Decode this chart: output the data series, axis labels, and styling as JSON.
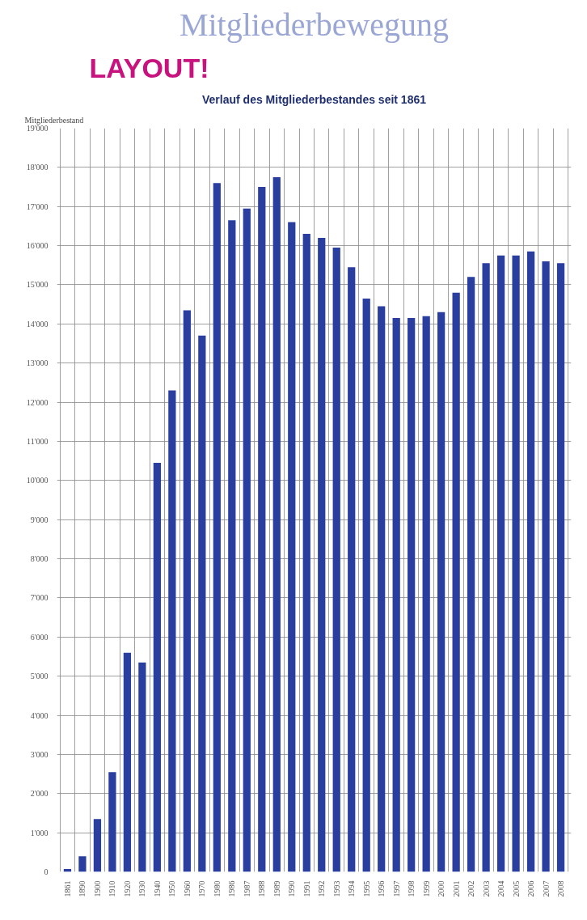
{
  "chart_data": {
    "type": "bar",
    "title": "Mitgliederbewegung",
    "subtitle": "Verlauf des Mitgliederbestandes seit 1861",
    "annotations": [
      "LAYOUT!"
    ],
    "ylabel": "Mitgliederbestand",
    "categories": [
      "1861",
      "1890",
      "1900",
      "1910",
      "1920",
      "1930",
      "1940",
      "1950",
      "1960",
      "1970",
      "1980",
      "1986",
      "1987",
      "1988",
      "1989",
      "1990",
      "1991",
      "1992",
      "1993",
      "1994",
      "1995",
      "1996",
      "1997",
      "1998",
      "1999",
      "2000",
      "2001",
      "2002",
      "2003",
      "2004",
      "2005",
      "2006",
      "2007",
      "2008"
    ],
    "values": [
      70,
      400,
      1350,
      2550,
      5600,
      5350,
      10450,
      12300,
      14350,
      13700,
      17600,
      16650,
      16950,
      17500,
      17750,
      16600,
      16300,
      16200,
      15950,
      15450,
      14650,
      14450,
      14150,
      14150,
      14200,
      14300,
      14800,
      15200,
      15550,
      15750,
      15750,
      15850,
      15600,
      15550
    ],
    "color": "#2a3ea0",
    "ylim": [
      0,
      19000
    ],
    "yticks": [
      {
        "value": 0,
        "label": "0"
      },
      {
        "value": 1000,
        "label": "1'000"
      },
      {
        "value": 2000,
        "label": "2'000"
      },
      {
        "value": 3000,
        "label": "3'000"
      },
      {
        "value": 4000,
        "label": "4'000"
      },
      {
        "value": 5000,
        "label": "5'000"
      },
      {
        "value": 6000,
        "label": "6'000"
      },
      {
        "value": 7000,
        "label": "7'000"
      },
      {
        "value": 8000,
        "label": "8'000"
      },
      {
        "value": 9000,
        "label": "9'000"
      },
      {
        "value": 10000,
        "label": "10'000"
      },
      {
        "value": 11000,
        "label": "11'000"
      },
      {
        "value": 12000,
        "label": "12'000"
      },
      {
        "value": 13000,
        "label": "13'000"
      },
      {
        "value": 14000,
        "label": "14'000"
      },
      {
        "value": 15000,
        "label": "15'000"
      },
      {
        "value": 16000,
        "label": "16'000"
      },
      {
        "value": 17000,
        "label": "17'000"
      },
      {
        "value": 18000,
        "label": "18'000"
      },
      {
        "value": 19000,
        "label": "19'000"
      }
    ],
    "grid": true
  }
}
